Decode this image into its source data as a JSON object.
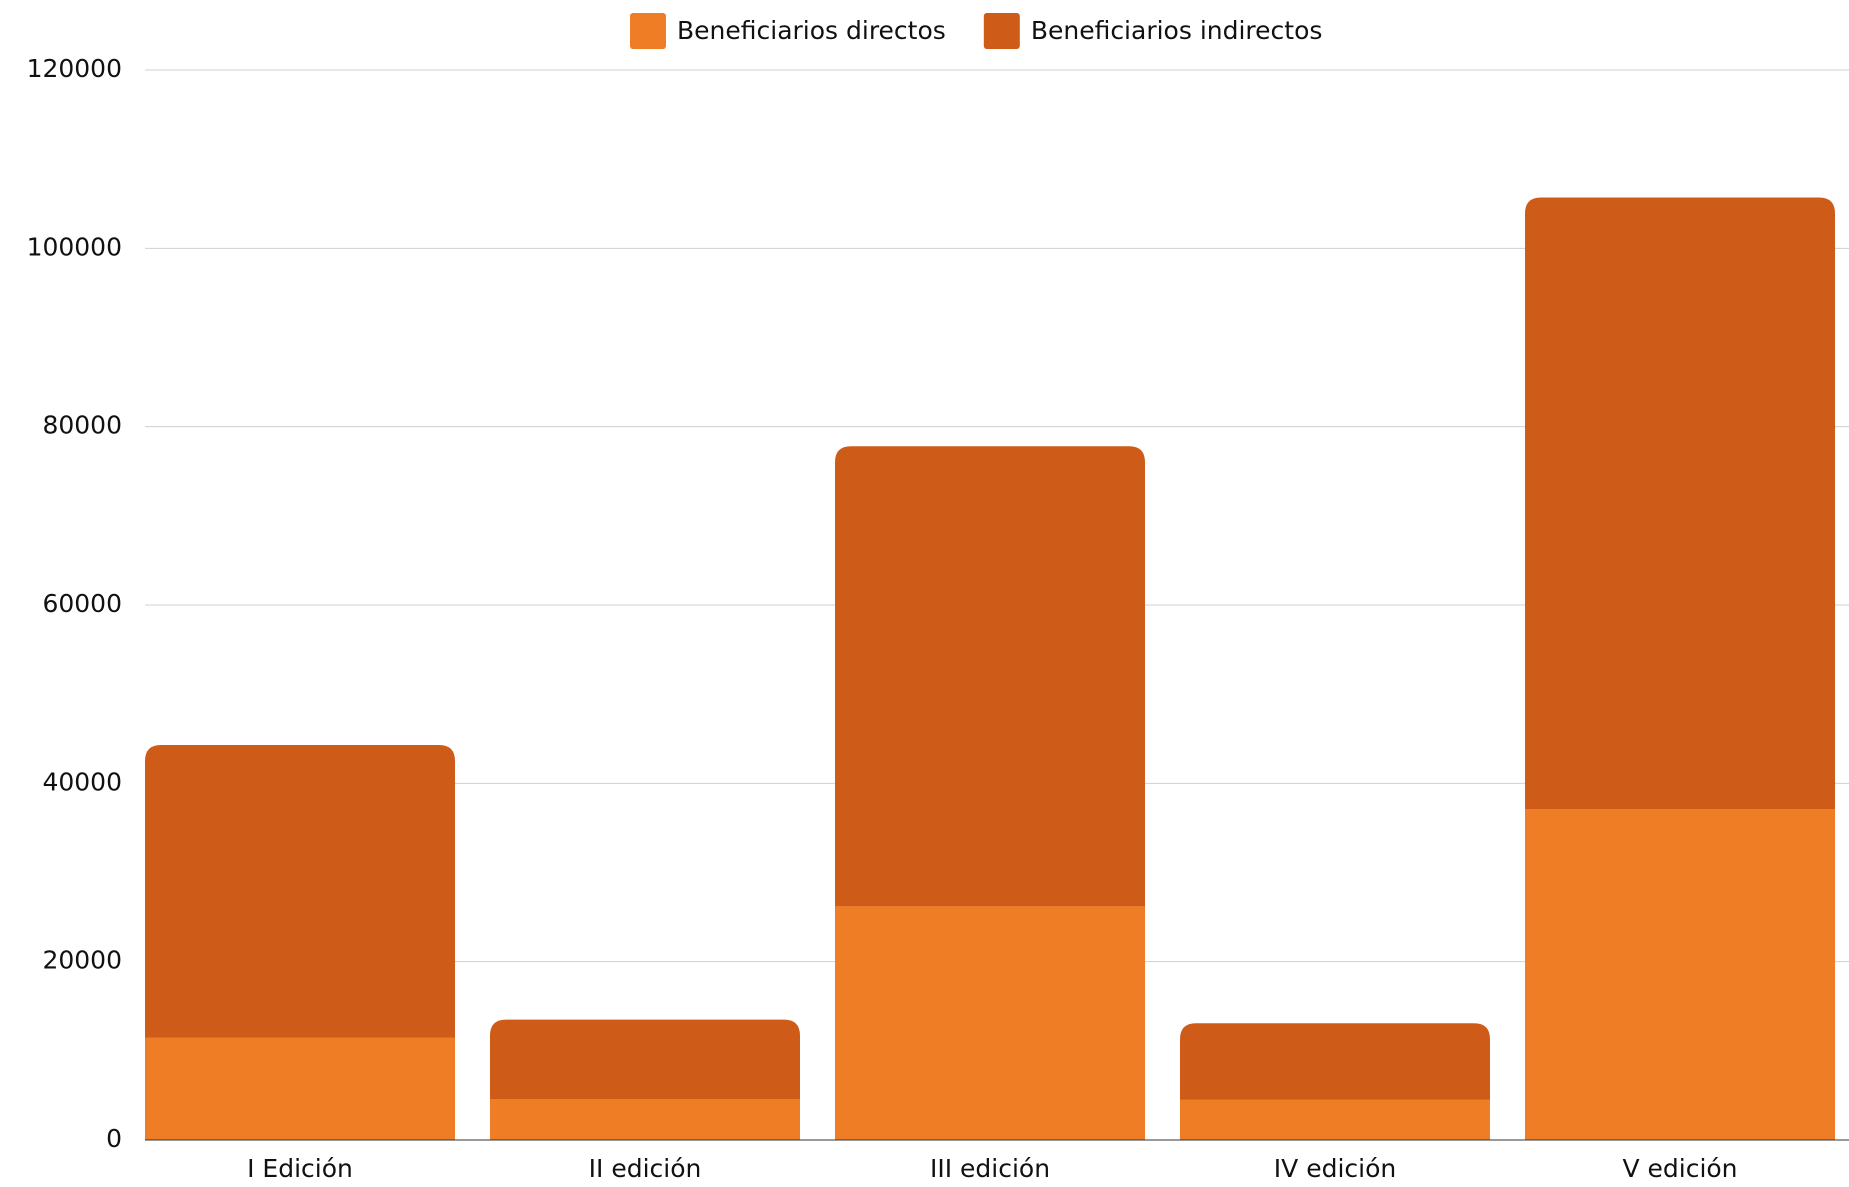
{
  "chart_data": {
    "type": "stacked_bar",
    "categories": [
      "I Edición",
      "II edición",
      "III edición",
      "IV edición",
      "V edición"
    ],
    "series": [
      {
        "name": "Beneficiarios directos",
        "color": "#ee7d26",
        "values": [
          11500,
          4600,
          26200,
          4500,
          37100
        ]
      },
      {
        "name": "Beneficiarios indirectos",
        "color": "#cf5b19",
        "values": [
          32800,
          8900,
          51600,
          8600,
          68600
        ]
      }
    ],
    "ylim": [
      0,
      120000
    ],
    "yticks": [
      0,
      20000,
      40000,
      60000,
      80000,
      100000,
      120000
    ],
    "grid": true,
    "legend": "top"
  }
}
